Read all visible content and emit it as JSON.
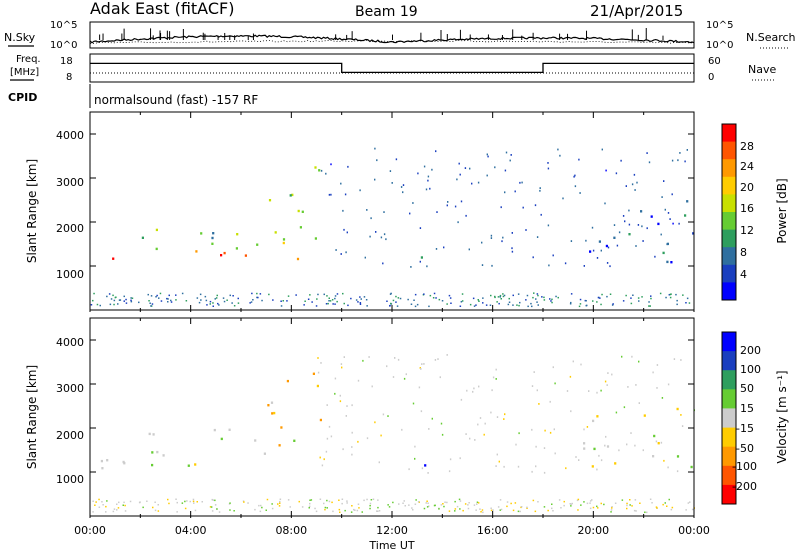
{
  "header": {
    "station": "Adak East (fitACF)",
    "beam": "Beam 19",
    "date": "21/Apr/2015"
  },
  "noise_panel": {
    "left_label": "N.Sky",
    "right_label": "N.Search",
    "left_ticks": [
      "10^5",
      "10^0"
    ],
    "right_ticks": [
      "10^5",
      "10^0"
    ]
  },
  "freq_panel": {
    "left_label_line1": "Freq.",
    "left_label_line2": "[MHz]",
    "right_label": "Nave",
    "left_ticks": [
      "18",
      "8"
    ],
    "right_ticks": [
      "60",
      "0"
    ]
  },
  "cpid": {
    "label": "CPID",
    "text": "normalsound (fast) -157 RF"
  },
  "power_panel": {
    "ylabel": "Slant Range [km]",
    "yticks": [
      "4000",
      "3000",
      "2000",
      "1000"
    ],
    "cbar_label": "Power [dB]",
    "cbar_ticks": [
      "28",
      "24",
      "20",
      "16",
      "12",
      "8",
      "4"
    ],
    "cbar_colors": [
      "#ff0000",
      "#ff5500",
      "#ff9900",
      "#ffcc00",
      "#c8e000",
      "#66cc33",
      "#2e9e5e",
      "#2f6f9f",
      "#1a3fbf",
      "#0000ff"
    ]
  },
  "velocity_panel": {
    "ylabel": "Slant Range [km]",
    "yticks": [
      "4000",
      "3000",
      "2000",
      "1000"
    ],
    "cbar_label": "Velocity [m s⁻¹]",
    "cbar_ticks": [
      "200",
      "100",
      "50",
      "15",
      "-15",
      "-50",
      "-100",
      "-200"
    ],
    "cbar_colors": [
      "#0000ff",
      "#1a3fbf",
      "#2e9e5e",
      "#66cc33",
      "#cccccc",
      "#ffcc00",
      "#ff9900",
      "#ff5500",
      "#ff0000"
    ]
  },
  "x_axis": {
    "label": "Time UT",
    "ticks": [
      "00:00",
      "04:00",
      "08:00",
      "12:00",
      "16:00",
      "20:00",
      "00:00"
    ]
  },
  "chart_data": [
    {
      "type": "line",
      "title": "N.Sky / N.Search",
      "y_scale": "log",
      "ylim": [
        1,
        100000
      ],
      "x_range_hours": [
        0,
        24
      ],
      "series": []
    },
    {
      "type": "line",
      "title": "Freq. [MHz] / Nave",
      "x": [
        0,
        10,
        10,
        18,
        18,
        24
      ],
      "series": [
        {
          "name": "Freq. [MHz]",
          "values": [
            15,
            15,
            10,
            10,
            15,
            15
          ]
        }
      ]
    },
    {
      "type": "heatmap",
      "title": "Power [dB]",
      "xlabel": "Time UT",
      "ylabel": "Slant Range [km]",
      "x_range_hours": [
        0,
        24
      ],
      "ylim": [
        0,
        4500
      ],
      "color_range_db": [
        0,
        32
      ],
      "echo_regions": [
        {
          "t0": 0.0,
          "t1": 8.5,
          "r0": 1100,
          "r1": 1400,
          "level": 28
        },
        {
          "t0": 0.0,
          "t1": 8.5,
          "r0": 1400,
          "r1": 2000,
          "level": 12
        },
        {
          "t0": 7.0,
          "t1": 9.3,
          "r0": 1500,
          "r1": 3300,
          "level": 16
        },
        {
          "t0": 9.8,
          "t1": 11.0,
          "r0": 1250,
          "r1": 1550,
          "level": 8
        },
        {
          "t0": 13.0,
          "t1": 14.3,
          "r0": 1100,
          "r1": 1600,
          "level": 8
        },
        {
          "t0": 19.5,
          "t1": 24.0,
          "r0": 1100,
          "r1": 2500,
          "level": 6
        }
      ]
    },
    {
      "type": "heatmap",
      "title": "Velocity [m s⁻¹]",
      "xlabel": "Time UT",
      "ylabel": "Slant Range [km]",
      "x_range_hours": [
        0,
        24
      ],
      "ylim": [
        0,
        4500
      ],
      "color_range_ms": [
        -250,
        250
      ],
      "echo_regions": [
        {
          "t0": 0.0,
          "t1": 8.5,
          "r0": 1100,
          "r1": 2000,
          "velocity": 0
        },
        {
          "t0": 7.0,
          "t1": 9.3,
          "r0": 1500,
          "r1": 3300,
          "velocity": -40
        },
        {
          "t0": 9.8,
          "t1": 11.0,
          "r0": 1250,
          "r1": 1550,
          "velocity": 200
        },
        {
          "t0": 13.0,
          "t1": 14.3,
          "r0": 1100,
          "r1": 1600,
          "velocity": 180
        },
        {
          "t0": 19.5,
          "t1": 24.0,
          "r0": 1100,
          "r1": 2500,
          "velocity": 0
        }
      ]
    }
  ]
}
